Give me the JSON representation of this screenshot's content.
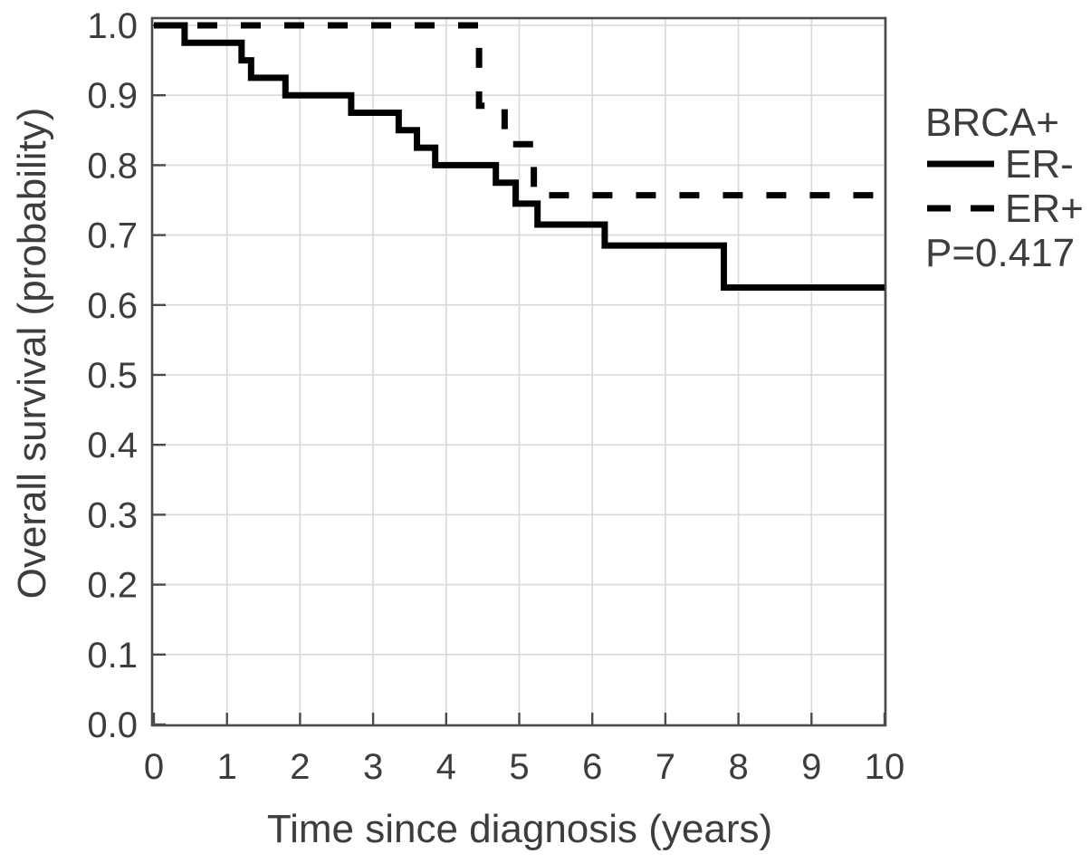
{
  "chart_data": {
    "type": "line",
    "subtype": "kaplan-meier-step",
    "title": "",
    "xlabel": "Time since diagnosis (years)",
    "ylabel": "Overall survival (probability)",
    "xlim": [
      0,
      10
    ],
    "ylim": [
      0.0,
      1.0
    ],
    "x_ticks": [
      0,
      1,
      2,
      3,
      4,
      5,
      6,
      7,
      8,
      9,
      10
    ],
    "y_ticks": [
      0.0,
      0.1,
      0.2,
      0.3,
      0.4,
      0.5,
      0.6,
      0.7,
      0.8,
      0.9,
      1.0
    ],
    "grid": true,
    "legend": {
      "title": "BRCA+",
      "entries": [
        {
          "label": "ER-",
          "style": "solid"
        },
        {
          "label": "ER+",
          "style": "dashed"
        }
      ],
      "annotation": "P=0.417",
      "position": "right"
    },
    "series": [
      {
        "name": "ER-",
        "style": "solid",
        "color": "#000000",
        "end_time": 10,
        "points": [
          [
            0,
            1.0
          ],
          [
            0.42,
            0.975
          ],
          [
            1.2,
            0.95
          ],
          [
            1.33,
            0.925
          ],
          [
            1.8,
            0.9
          ],
          [
            2.7,
            0.875
          ],
          [
            3.35,
            0.85
          ],
          [
            3.6,
            0.825
          ],
          [
            3.85,
            0.8
          ],
          [
            4.68,
            0.775
          ],
          [
            4.95,
            0.745
          ],
          [
            5.25,
            0.715
          ],
          [
            6.17,
            0.685
          ],
          [
            7.8,
            0.625
          ]
        ]
      },
      {
        "name": "ER+",
        "style": "dashed",
        "color": "#000000",
        "end_time": 10,
        "points": [
          [
            0,
            1.0
          ],
          [
            4.45,
            0.885
          ],
          [
            4.8,
            0.83
          ],
          [
            5.2,
            0.757
          ]
        ]
      }
    ],
    "colors": {
      "curve": "#000000",
      "grid": "#d9d9d9",
      "axis": "#4b4b4b",
      "text": "#3d3d3d",
      "background": "#ffffff"
    }
  }
}
